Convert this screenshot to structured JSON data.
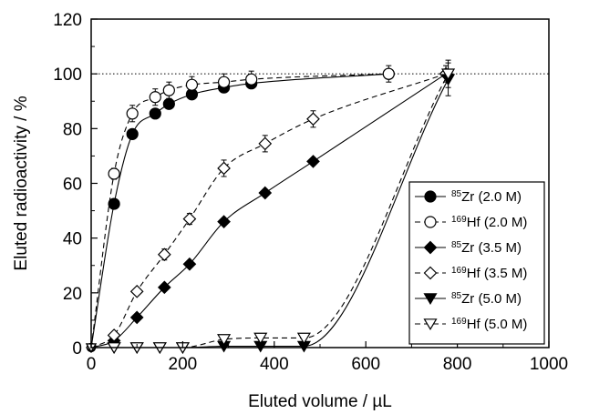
{
  "chart_data": {
    "type": "scatter",
    "xlabel": "Eluted volume / µL",
    "ylabel": "Eluted radioactivity / %",
    "xlim": [
      0,
      1000
    ],
    "ylim": [
      0,
      120
    ],
    "x_ticks": [
      "0",
      "200",
      "400",
      "600",
      "800",
      "1000"
    ],
    "y_ticks": [
      "0",
      "20",
      "40",
      "60",
      "80",
      "100",
      "120"
    ],
    "reference_line_y": 100,
    "grid": false,
    "legend_position": "bottom-right",
    "series": [
      {
        "isotope": "85",
        "element": "Zr",
        "condition": "(2.0 M)",
        "marker": "circle",
        "filled": true,
        "line": "solid",
        "x": [
          0,
          50,
          90,
          140,
          170,
          220,
          290,
          350,
          650
        ],
        "y": [
          0,
          52.5,
          78,
          85.5,
          89,
          92.5,
          95,
          96.5,
          100
        ]
      },
      {
        "isotope": "169",
        "element": "Hf",
        "condition": "(2.0 M)",
        "marker": "circle",
        "filled": false,
        "line": "dashed",
        "x": [
          0,
          50,
          90,
          140,
          170,
          220,
          290,
          350,
          650
        ],
        "y": [
          0,
          63.5,
          85.5,
          91.5,
          94,
          96,
          97,
          98,
          100
        ],
        "error": [
          0,
          2,
          3,
          3,
          3,
          3,
          3,
          3,
          3
        ]
      },
      {
        "isotope": "85",
        "element": "Zr",
        "condition": "(3.5 M)",
        "marker": "diamond",
        "filled": true,
        "line": "solid",
        "x": [
          0,
          50,
          100,
          160,
          215,
          290,
          380,
          485,
          775
        ],
        "y": [
          0,
          2.5,
          11,
          22,
          30.5,
          46,
          56.5,
          68,
          100
        ]
      },
      {
        "isotope": "169",
        "element": "Hf",
        "condition": "(3.5 M)",
        "marker": "diamond",
        "filled": false,
        "line": "dashed",
        "x": [
          0,
          50,
          100,
          160,
          215,
          290,
          380,
          485,
          775
        ],
        "y": [
          0,
          4.5,
          20.5,
          34,
          47,
          65.5,
          74.5,
          83.5,
          100
        ],
        "error": [
          0,
          0,
          0,
          2,
          2,
          3,
          3,
          3,
          3
        ]
      },
      {
        "isotope": "85",
        "element": "Zr",
        "condition": "(5.0 M)",
        "marker": "triangle-down",
        "filled": true,
        "line": "solid",
        "x": [
          0,
          50,
          100,
          150,
          200,
          290,
          370,
          465,
          780
        ],
        "y": [
          0,
          0,
          0,
          0,
          0,
          0.5,
          0.5,
          0.5,
          98
        ],
        "error": [
          0,
          0,
          0,
          0,
          0,
          0,
          0,
          0,
          6
        ]
      },
      {
        "isotope": "169",
        "element": "Hf",
        "condition": "(5.0 M)",
        "marker": "triangle-down",
        "filled": false,
        "line": "dashed",
        "x": [
          0,
          50,
          100,
          150,
          200,
          290,
          370,
          465,
          780
        ],
        "y": [
          0,
          0,
          0,
          0,
          0,
          3,
          3.5,
          3.5,
          100
        ],
        "error": [
          0,
          0,
          0,
          0,
          0,
          0,
          0,
          0,
          5
        ]
      }
    ]
  }
}
